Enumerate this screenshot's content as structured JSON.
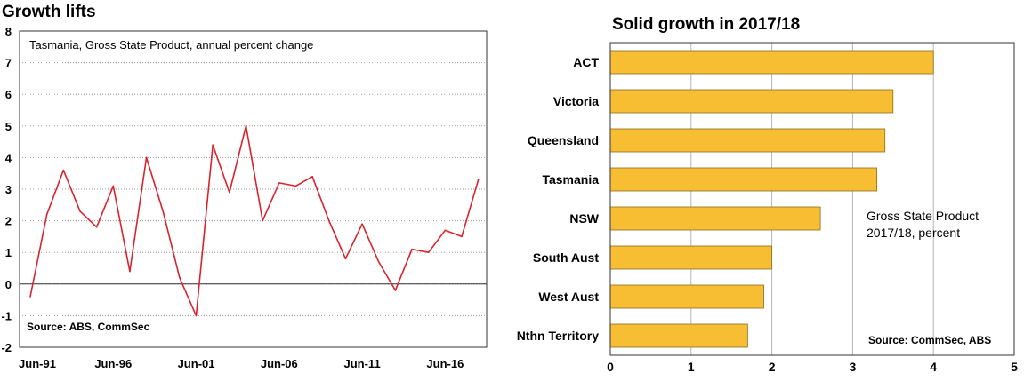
{
  "chart_data": [
    {
      "type": "line",
      "title": "Growth lifts",
      "subtitle": "Tasmania, Gross State Product, annual percent change",
      "source": "Source: ABS, CommSec",
      "ylim": [
        -2,
        8
      ],
      "yticks": [
        "-2",
        "-1",
        "0",
        "1",
        "2",
        "3",
        "4",
        "5",
        "6",
        "7",
        "8"
      ],
      "xrange": [
        1991,
        2018.5
      ],
      "xticks": [
        {
          "label": "Jun-91",
          "year": 1991
        },
        {
          "label": "Jun-96",
          "year": 1996
        },
        {
          "label": "Jun-01",
          "year": 2001
        },
        {
          "label": "Jun-06",
          "year": 2006
        },
        {
          "label": "Jun-11",
          "year": 2011
        },
        {
          "label": "Jun-16",
          "year": 2016
        }
      ],
      "series": [
        {
          "name": "Tasmania GSP annual % change",
          "color": "#d9232d",
          "x": [
            1991,
            1992,
            1993,
            1994,
            1995,
            1996,
            1997,
            1998,
            1999,
            2000,
            2001,
            2002,
            2003,
            2004,
            2005,
            2006,
            2007,
            2008,
            2009,
            2010,
            2011,
            2012,
            2013,
            2014,
            2015,
            2016,
            2017,
            2018
          ],
          "values": [
            -0.4,
            2.2,
            3.6,
            2.3,
            1.8,
            3.1,
            0.4,
            4.0,
            2.3,
            0.2,
            -1.0,
            4.4,
            2.9,
            5.0,
            2.0,
            3.2,
            3.1,
            3.4,
            2.0,
            0.8,
            1.9,
            0.7,
            -0.2,
            1.1,
            1.0,
            1.7,
            1.5,
            3.3
          ]
        }
      ]
    },
    {
      "type": "bar",
      "orientation": "horizontal",
      "title": "Solid growth in 2017/18",
      "annotation": [
        "Gross State Product",
        "2017/18, percent"
      ],
      "source": "Source: CommSec, ABS",
      "categories": [
        "ACT",
        "Victoria",
        "Queensland",
        "Tasmania",
        "NSW",
        "South Aust",
        "West Aust",
        "Nthn Territory"
      ],
      "values": [
        4.0,
        3.5,
        3.4,
        3.3,
        2.6,
        2.0,
        1.9,
        1.7
      ],
      "xlim": [
        0,
        5
      ],
      "xticks": [
        "0",
        "1",
        "2",
        "3",
        "4",
        "5"
      ],
      "bar_color": "#f7bd33"
    }
  ]
}
